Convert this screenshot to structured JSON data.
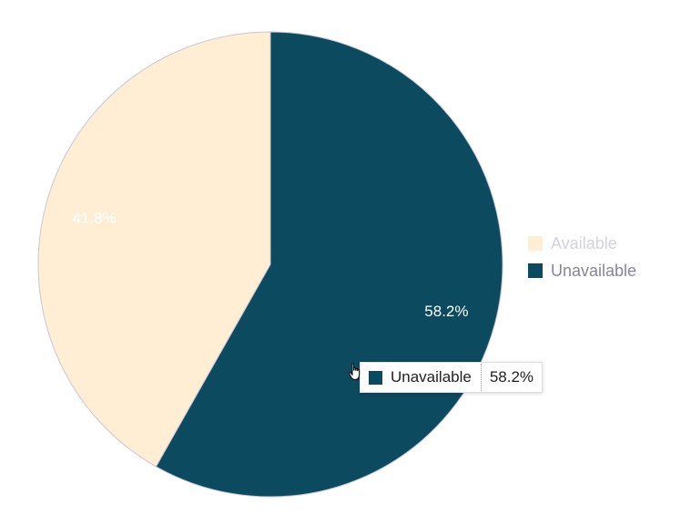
{
  "chart_data": {
    "type": "pie",
    "categories": [
      "Available",
      "Unavailable"
    ],
    "values": [
      41.8,
      58.2
    ],
    "data_labels": [
      "41.8%",
      "58.2%"
    ],
    "colors": [
      "#ffeed3",
      "#0c4a60"
    ],
    "legend_position": "right",
    "legend_state": {
      "Available": "dimmed",
      "Unavailable": "active"
    }
  },
  "tooltip": {
    "label": "Unavailable",
    "value": "58.2%",
    "color": "#0c4a60"
  },
  "cursor": {
    "icon": "hand-pointer-icon"
  }
}
